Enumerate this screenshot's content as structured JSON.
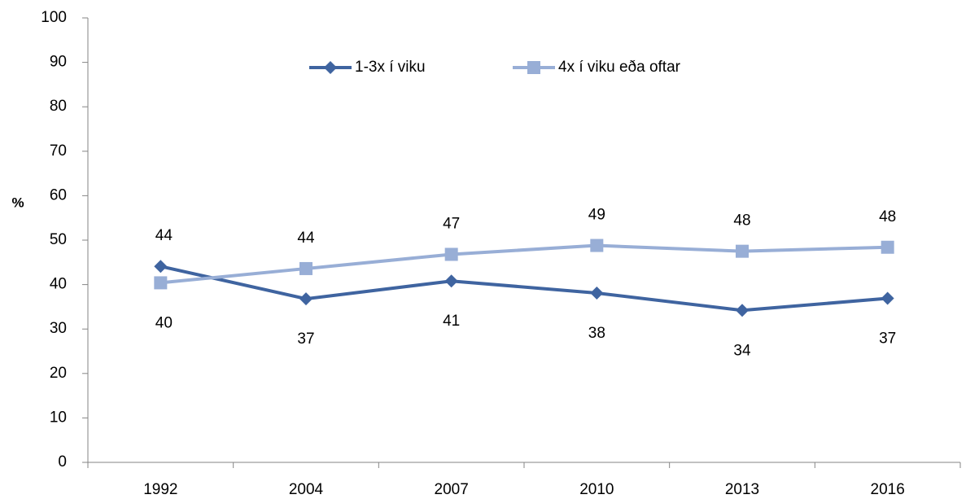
{
  "chart_data": {
    "type": "line",
    "y_label": "%",
    "categories": [
      "1992",
      "2004",
      "2007",
      "2010",
      "2013",
      "2016"
    ],
    "series": [
      {
        "name": "1-3x í viku",
        "color": "#3f64a0",
        "marker": "diamond",
        "values": [
          44.1,
          36.8,
          40.8,
          38.1,
          34.2,
          36.9
        ],
        "value_labels": [
          "44",
          "37",
          "41",
          "38",
          "34",
          "37"
        ]
      },
      {
        "name": "4x í viku eða oftar",
        "color": "#98aed6",
        "marker": "square",
        "values": [
          40.4,
          43.6,
          46.8,
          48.8,
          47.5,
          48.4
        ],
        "value_labels": [
          "40",
          "44",
          "47",
          "49",
          "48",
          "48"
        ]
      }
    ],
    "ylim": [
      0,
      100
    ],
    "yticks": [
      0,
      10,
      20,
      30,
      40,
      50,
      60,
      70,
      80,
      90,
      100
    ],
    "legend": "top",
    "grid": false
  }
}
